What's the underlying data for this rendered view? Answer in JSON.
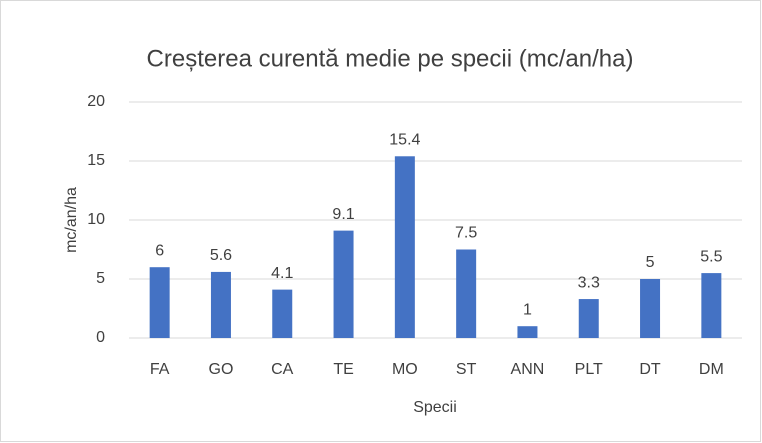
{
  "chart_data": {
    "type": "bar",
    "title": "Creșterea curentă medie pe specii (mc/an/ha)",
    "x_label": "Specii",
    "y_label": "mc/an/ha",
    "categories": [
      "FA",
      "GO",
      "CA",
      "TE",
      "MO",
      "ST",
      "ANN",
      "PLT",
      "DT",
      "DM"
    ],
    "values": [
      6,
      5.6,
      4.1,
      9.1,
      15.4,
      7.5,
      1,
      3.3,
      5,
      5.5
    ],
    "color": "#4472c4",
    "ylim": [
      0,
      20
    ],
    "yticks": [
      0,
      5,
      10,
      15,
      20
    ],
    "grid": true
  }
}
